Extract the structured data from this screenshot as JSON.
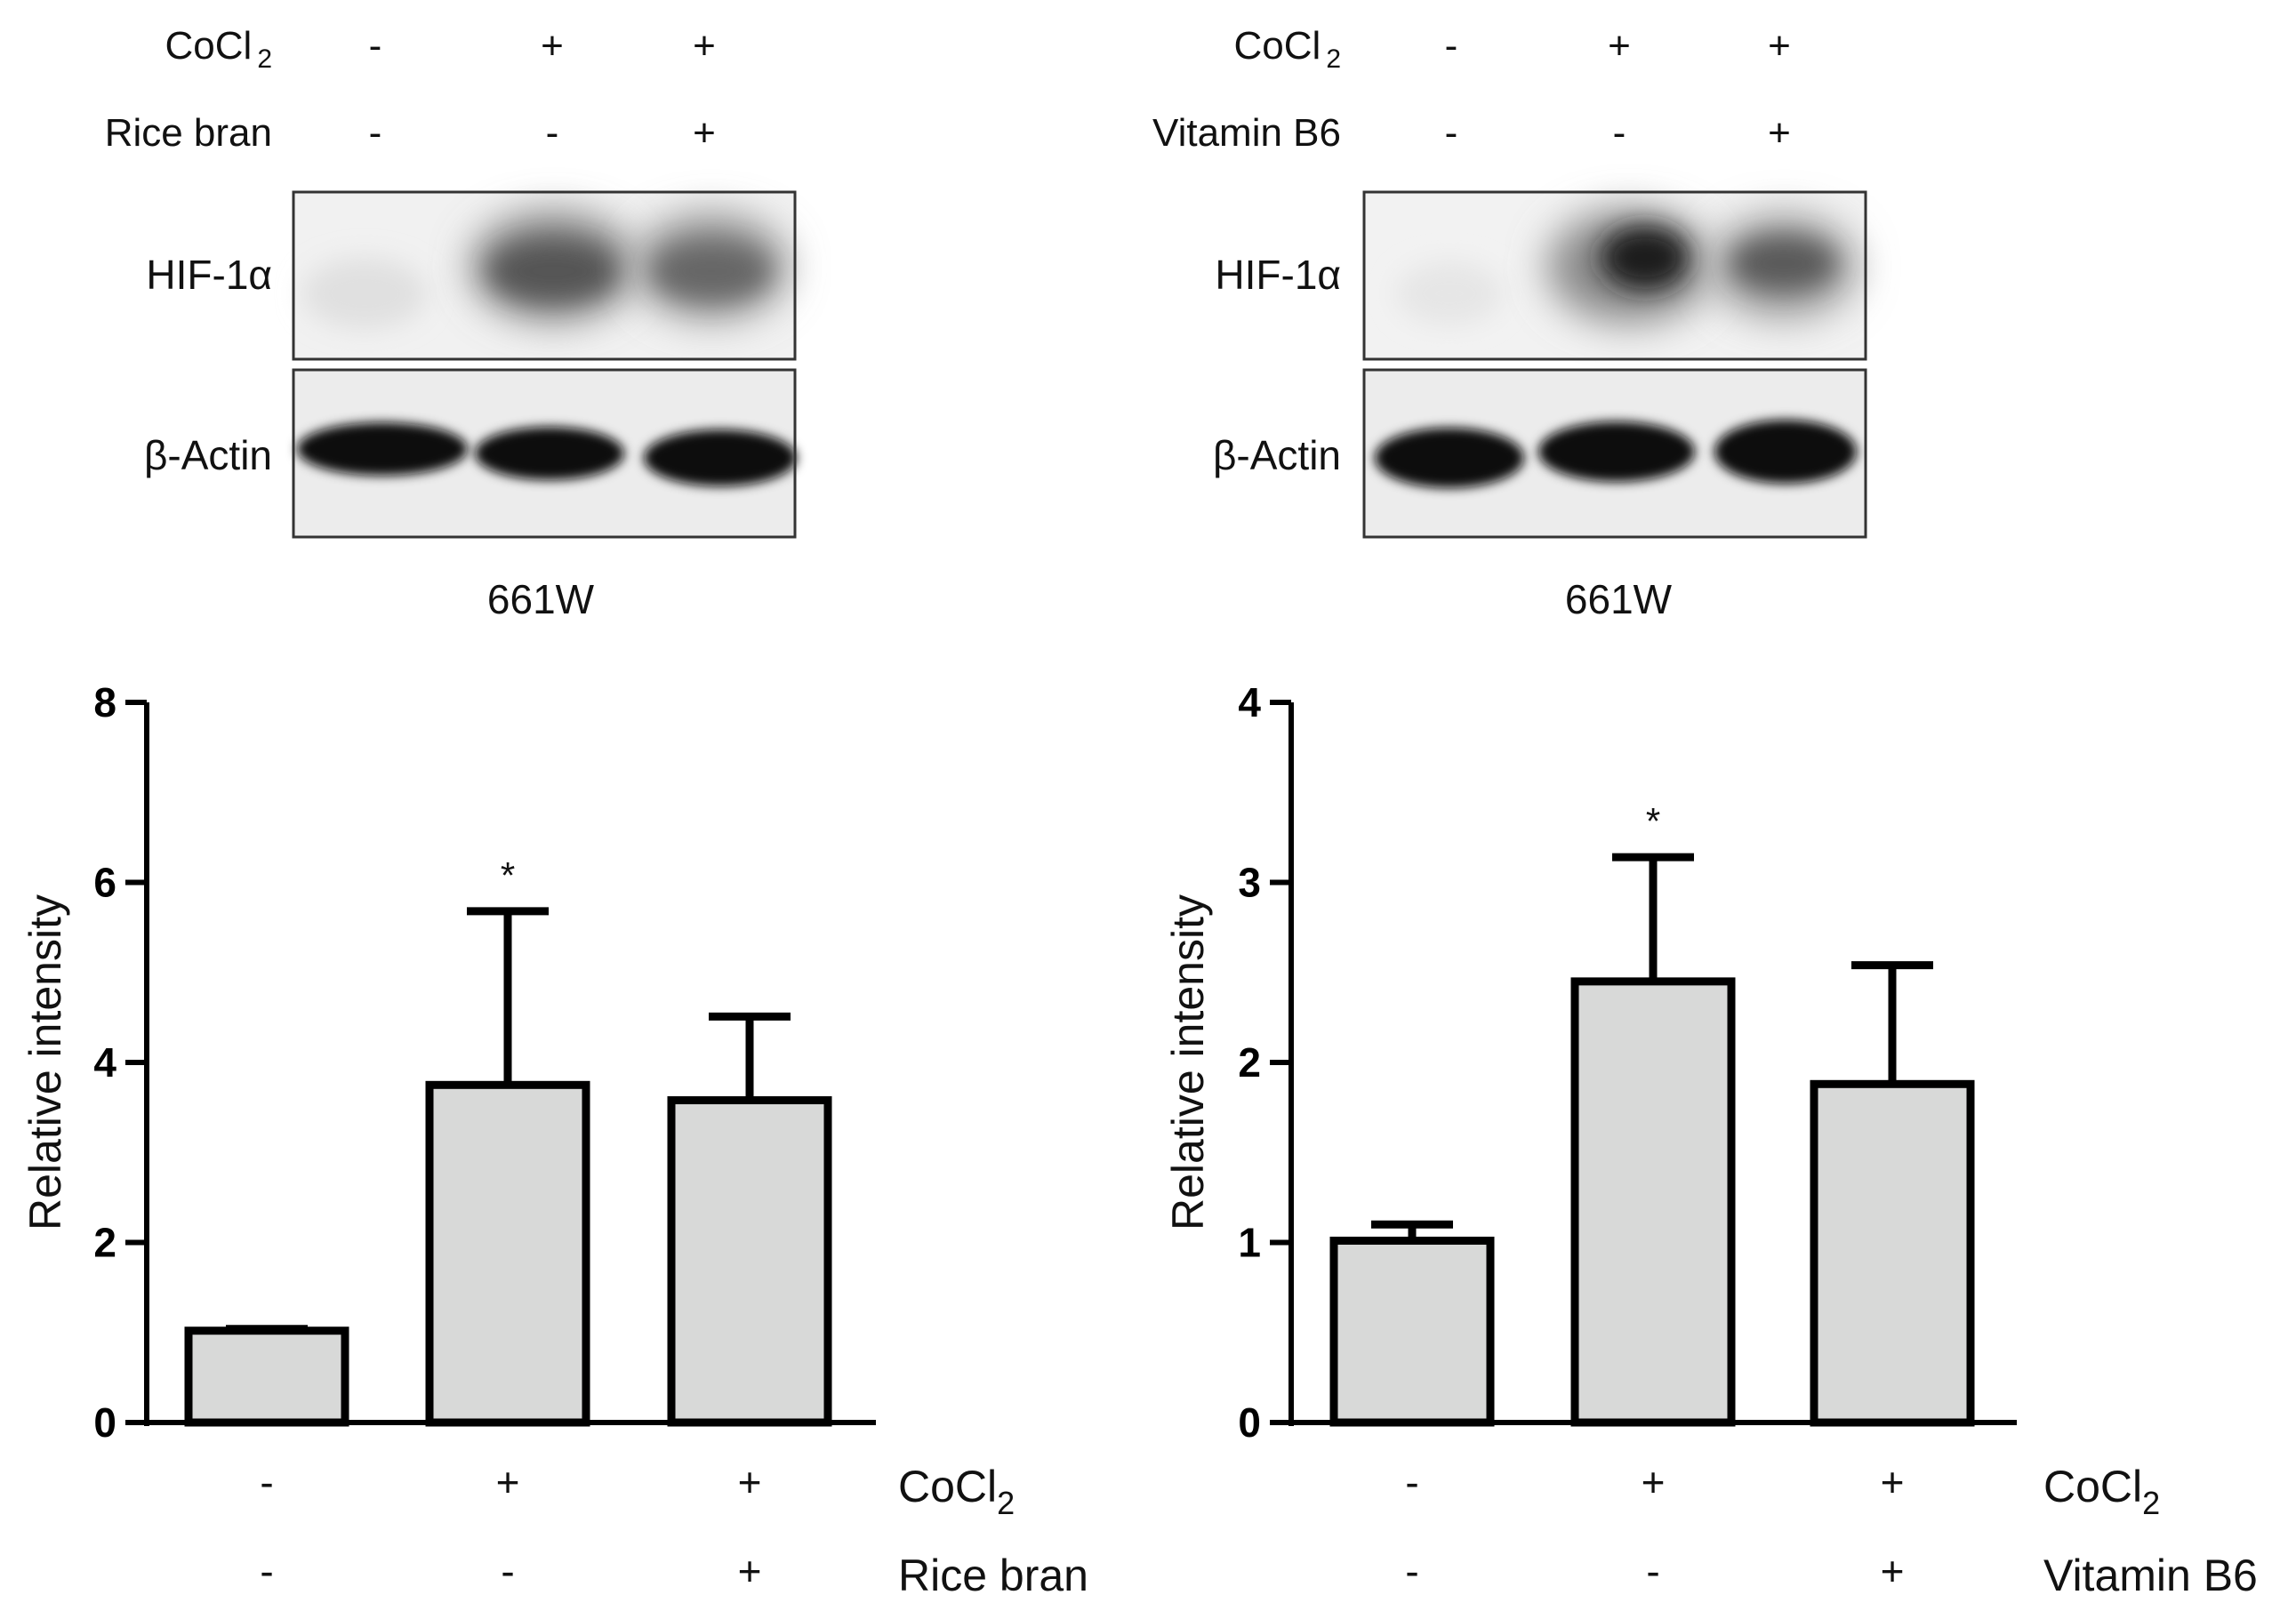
{
  "blots": [
    {
      "rows": [
        {
          "label": "CoCl",
          "sub": "2",
          "signs": [
            "-",
            "+",
            "+"
          ]
        },
        {
          "label": "Rice bran",
          "signs": [
            "-",
            "-",
            "+"
          ]
        }
      ],
      "bands": [
        "HIF-1α",
        "β-Actin"
      ],
      "caption": "661W"
    },
    {
      "rows": [
        {
          "label": "CoCl",
          "sub": "2",
          "signs": [
            "-",
            "+",
            "+"
          ]
        },
        {
          "label": "Vitamin B6",
          "signs": [
            "-",
            "-",
            "+"
          ]
        }
      ],
      "bands": [
        "HIF-1α",
        "β-Actin"
      ],
      "caption": "661W"
    }
  ],
  "chart_data": [
    {
      "type": "bar",
      "ylabel": "Relative intensity",
      "ylim": [
        0,
        8
      ],
      "yticks": [
        0,
        2,
        4,
        6,
        8
      ],
      "values": [
        1.02,
        3.75,
        3.58
      ],
      "errors": [
        0.02,
        1.93,
        0.93
      ],
      "significance": [
        "",
        "*",
        ""
      ],
      "bar_color": "#d8d9d8",
      "treatment_rows": [
        {
          "label": "CoCl",
          "sub": "2",
          "signs": [
            "-",
            "+",
            "+"
          ]
        },
        {
          "label": "Rice bran",
          "signs": [
            "-",
            "-",
            "+"
          ]
        }
      ]
    },
    {
      "type": "bar",
      "ylabel": "Relative intensity",
      "ylim": [
        0,
        4
      ],
      "yticks": [
        0,
        1,
        2,
        3,
        4
      ],
      "values": [
        1.01,
        2.45,
        1.88
      ],
      "errors": [
        0.09,
        0.69,
        0.66
      ],
      "significance": [
        "",
        "*",
        ""
      ],
      "bar_color": "#d8d9d8",
      "treatment_rows": [
        {
          "label": "CoCl",
          "sub": "2",
          "signs": [
            "-",
            "+",
            "+"
          ]
        },
        {
          "label": "Vitamin B6",
          "signs": [
            "-",
            "-",
            "+"
          ]
        }
      ]
    }
  ]
}
